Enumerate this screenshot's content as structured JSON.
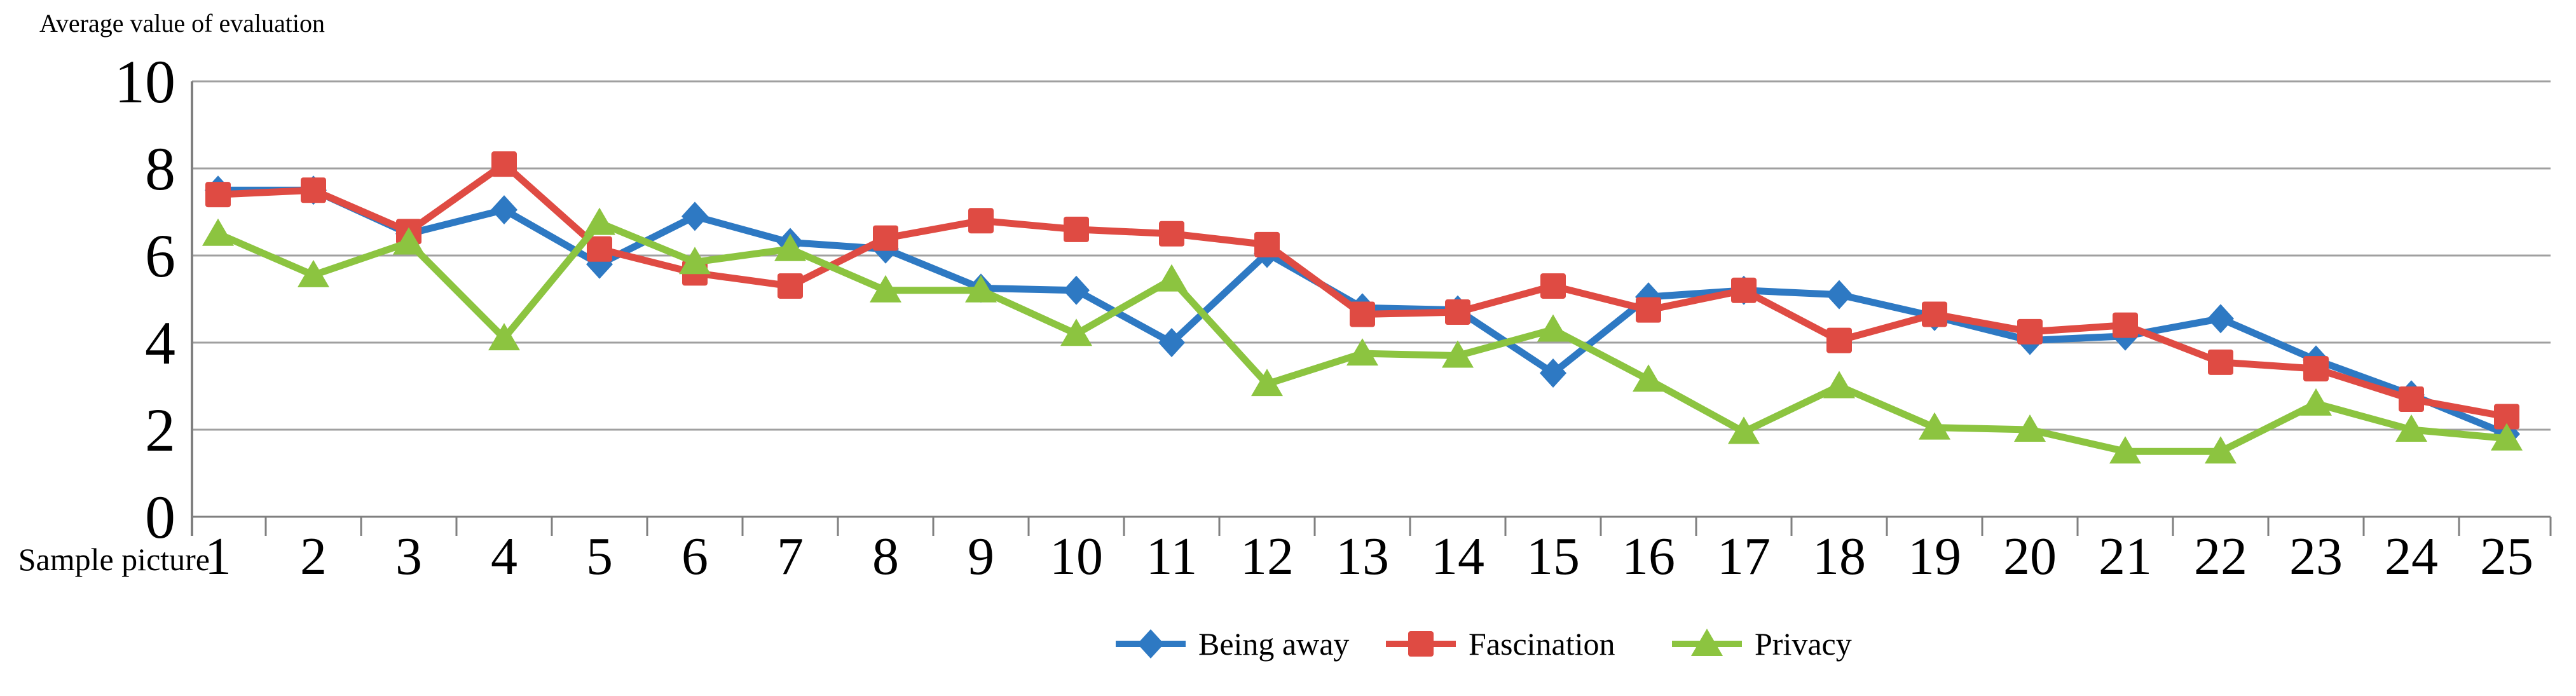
{
  "title": "Average value of evaluation",
  "x_axis_label": "Sample picture",
  "colors": {
    "background": "#FFFFFF",
    "grid": "#A0A0A0",
    "axis": "#808080",
    "text": "#000000",
    "being_away": "#2E79C3",
    "fascination": "#DF4B43",
    "privacy": "#8CC440"
  },
  "chart_data": {
    "type": "line",
    "title": "Average value of evaluation",
    "xlabel": "Sample picture",
    "ylabel": "",
    "ylim": [
      0,
      10
    ],
    "y_ticks": [
      0,
      2,
      4,
      6,
      8,
      10
    ],
    "grid": "horizontal",
    "legend_position": "bottom",
    "x_labels": [
      "1",
      "2",
      "3",
      "4",
      "5",
      "6",
      "7",
      "8",
      "9",
      "10",
      "11",
      "12",
      "13",
      "14",
      "15",
      "16",
      "17",
      "18",
      "19",
      "20",
      "21",
      "22",
      "23",
      "24",
      "25"
    ],
    "series": [
      {
        "name": "Being away",
        "color": "#2E79C3",
        "marker": "diamond",
        "values": [
          7.5,
          7.5,
          6.5,
          7.05,
          5.8,
          6.9,
          6.3,
          6.15,
          5.25,
          5.2,
          4.0,
          6.05,
          4.8,
          4.75,
          3.3,
          5.05,
          5.2,
          5.1,
          4.6,
          4.05,
          4.15,
          4.55,
          3.6,
          2.8,
          1.9
        ]
      },
      {
        "name": "Fascination",
        "color": "#DF4B43",
        "marker": "square",
        "values": [
          7.4,
          7.5,
          6.55,
          8.1,
          6.15,
          5.6,
          5.3,
          6.4,
          6.8,
          6.6,
          6.5,
          6.25,
          4.65,
          4.7,
          5.3,
          4.75,
          5.2,
          4.05,
          4.65,
          4.25,
          4.4,
          3.55,
          3.4,
          2.7,
          2.3
        ]
      },
      {
        "name": "Privacy",
        "color": "#8CC440",
        "marker": "triangle",
        "values": [
          6.5,
          5.55,
          6.3,
          4.1,
          6.75,
          5.85,
          6.15,
          5.2,
          5.2,
          4.2,
          5.45,
          3.05,
          3.75,
          3.7,
          4.3,
          3.15,
          1.95,
          3.0,
          2.05,
          2.0,
          1.5,
          1.5,
          2.6,
          2.0,
          1.8
        ]
      }
    ]
  }
}
